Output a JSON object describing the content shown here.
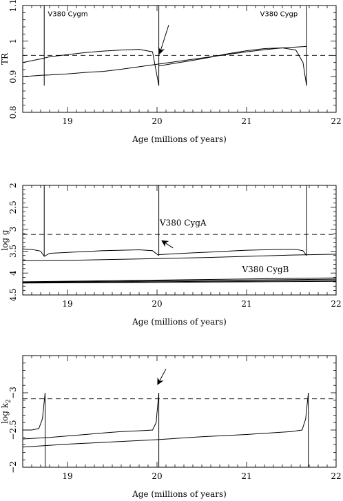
{
  "chart_data": [
    {
      "type": "line",
      "xlabel": "Age (millions of years)",
      "ylabel": "TR",
      "xlim": [
        18.5,
        22
      ],
      "ylim": [
        0.8,
        1.1
      ],
      "y_inverted": false,
      "xticks": [
        19,
        20,
        21,
        22
      ],
      "yticks": [
        0.8,
        0.9,
        1,
        1.1
      ],
      "ytick_labels": [
        "0.8",
        "0.9",
        "1",
        "1.1"
      ],
      "reference_line": {
        "y": 0.96,
        "style": "dashed"
      },
      "annotations": [
        {
          "text": "V380 Cygm",
          "x": 18.78,
          "y": 1.07
        },
        {
          "text": "V380 Cygp",
          "x": 21.15,
          "y": 1.07
        }
      ],
      "arrow": {
        "from": [
          20.13,
          1.045
        ],
        "to": [
          20.03,
          0.966
        ]
      },
      "series": [
        {
          "x": [
            18.5,
            18.6,
            18.7,
            18.75,
            18.8,
            19.0,
            19.2,
            19.4,
            19.6,
            19.8,
            19.95,
            20.02
          ],
          "y": [
            0.94,
            0.945,
            0.95,
            0.953,
            0.956,
            0.962,
            0.968,
            0.972,
            0.975,
            0.977,
            0.97,
            0.875
          ]
        },
        {
          "x": [
            20.02,
            20.2,
            20.4,
            20.6,
            20.8,
            21.0,
            21.2,
            21.4,
            21.55,
            21.63,
            21.67
          ],
          "y": [
            0.93,
            0.938,
            0.946,
            0.955,
            0.965,
            0.973,
            0.979,
            0.981,
            0.975,
            0.94,
            0.875
          ]
        },
        {
          "x": [
            18.5,
            18.6,
            18.7,
            18.8,
            19.0,
            19.2,
            19.4,
            19.6,
            19.8,
            20.0,
            20.2,
            20.4,
            20.6,
            20.8,
            21.0,
            21.2,
            21.4,
            21.67
          ],
          "y": [
            0.9,
            0.902,
            0.904,
            0.905,
            0.908,
            0.912,
            0.915,
            0.921,
            0.928,
            0.935,
            0.942,
            0.949,
            0.956,
            0.963,
            0.97,
            0.976,
            0.981,
            0.985
          ]
        },
        {
          "x": [
            18.74,
            18.74
          ],
          "y": [
            0.875,
            1.1
          ]
        },
        {
          "x": [
            20.02,
            20.02
          ],
          "y": [
            0.875,
            1.1
          ]
        },
        {
          "x": [
            21.67,
            21.67
          ],
          "y": [
            0.875,
            1.1
          ]
        }
      ]
    },
    {
      "type": "line",
      "xlabel": "Age (millions of years)",
      "ylabel": "log g",
      "xlim": [
        18.5,
        22
      ],
      "ylim": [
        2,
        4.5
      ],
      "y_inverted": true,
      "xticks": [
        19,
        20,
        21,
        22
      ],
      "yticks": [
        2,
        2.5,
        3,
        3.5,
        4,
        4.5
      ],
      "ytick_labels": [
        "2",
        "2.5",
        "3",
        "3.5",
        "4",
        "4.5"
      ],
      "reference_line": {
        "y": 3.12,
        "style": "dashed"
      },
      "annotations": [
        {
          "text": "V380 CygA",
          "x": 20.03,
          "y": 2.92
        },
        {
          "text": "V380 CygB",
          "x": 20.95,
          "y": 3.98
        }
      ],
      "arrow": {
        "from": [
          20.18,
          3.43
        ],
        "to": [
          20.06,
          3.27
        ]
      },
      "series": [
        {
          "x": [
            18.5,
            18.6,
            18.7,
            18.74,
            18.8,
            19.0,
            19.2,
            19.4,
            19.6,
            19.8,
            19.95,
            20.02
          ],
          "y": [
            3.45,
            3.46,
            3.5,
            3.62,
            3.55,
            3.53,
            3.51,
            3.49,
            3.48,
            3.47,
            3.49,
            3.6
          ]
        },
        {
          "x": [
            20.02,
            20.2,
            20.4,
            20.6,
            20.8,
            21.0,
            21.2,
            21.4,
            21.55,
            21.63,
            21.67
          ],
          "y": [
            3.58,
            3.56,
            3.54,
            3.52,
            3.5,
            3.48,
            3.47,
            3.46,
            3.46,
            3.49,
            3.6
          ]
        },
        {
          "x": [
            18.5,
            19.0,
            19.5,
            20.0,
            20.5,
            21.0,
            21.5,
            22.0
          ],
          "y": [
            3.72,
            3.71,
            3.69,
            3.67,
            3.65,
            3.62,
            3.59,
            3.57
          ]
        },
        {
          "x": [
            18.74,
            18.74
          ],
          "y": [
            2,
            3.62
          ]
        },
        {
          "x": [
            20.02,
            20.02
          ],
          "y": [
            2,
            3.6
          ]
        },
        {
          "x": [
            21.67,
            21.67
          ],
          "y": [
            2,
            3.6
          ]
        },
        {
          "x": [
            18.5,
            22.0
          ],
          "y": [
            4.2,
            4.11
          ]
        },
        {
          "x": [
            18.5,
            22.0
          ],
          "y": [
            4.21,
            4.14
          ]
        },
        {
          "x": [
            18.5,
            22.0
          ],
          "y": [
            4.22,
            4.17
          ]
        },
        {
          "x": [
            18.5,
            22.0
          ],
          "y": [
            4.23,
            4.19
          ]
        }
      ]
    },
    {
      "type": "line",
      "xlabel": "Age (millions of years)",
      "ylabel": "log k",
      "ylabel_subscript": "2",
      "xlim": [
        18.5,
        22
      ],
      "ylim": [
        -3.5,
        -2
      ],
      "y_inverted": true,
      "xticks": [
        19,
        20,
        21,
        22
      ],
      "yticks": [
        -3,
        -2.5,
        -2
      ],
      "ytick_labels": [
        "−3",
        "−2.5",
        "−2"
      ],
      "reference_line": {
        "y": -2.92,
        "style": "dashed"
      },
      "annotations": [],
      "arrow": {
        "from": [
          20.1,
          -3.32
        ],
        "to": [
          20.01,
          -3.12
        ]
      },
      "series": [
        {
          "x": [
            18.5,
            18.6,
            18.68,
            18.72,
            18.75
          ],
          "y": [
            -2.5,
            -2.5,
            -2.52,
            -2.65,
            -3.0
          ]
        },
        {
          "x": [
            18.5,
            18.8,
            19.0,
            19.2,
            19.4,
            19.6,
            19.8,
            19.95,
            19.99,
            20.02
          ],
          "y": [
            -2.38,
            -2.4,
            -2.42,
            -2.44,
            -2.46,
            -2.48,
            -2.49,
            -2.5,
            -2.6,
            -3.0
          ]
        },
        {
          "x": [
            18.5,
            19.0,
            19.5,
            20.0,
            20.5,
            21.0,
            21.5,
            21.62,
            21.66,
            21.69
          ],
          "y": [
            -2.27,
            -2.31,
            -2.34,
            -2.37,
            -2.41,
            -2.44,
            -2.48,
            -2.5,
            -2.65,
            -3.0
          ]
        },
        {
          "x": [
            18.75,
            18.75
          ],
          "y": [
            -3.0,
            -2.0
          ]
        },
        {
          "x": [
            20.02,
            20.02
          ],
          "y": [
            -3.0,
            -2.0
          ]
        },
        {
          "x": [
            21.69,
            21.69
          ],
          "y": [
            -3.0,
            -2.0
          ]
        }
      ]
    }
  ]
}
